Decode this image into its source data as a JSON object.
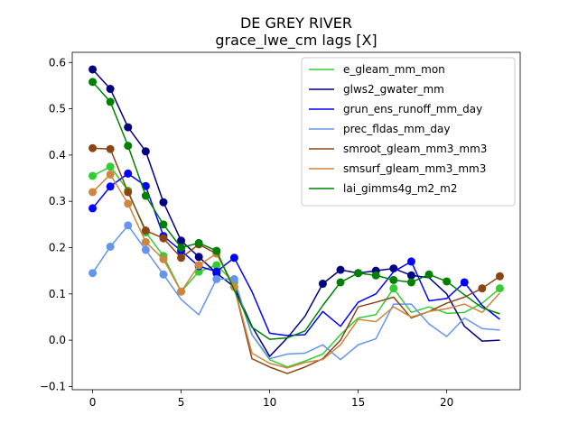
{
  "chart_data": {
    "type": "line",
    "title": "DE GREY RIVER",
    "subtitle": "grace_lwe_cm lags [X]",
    "xlabel": "",
    "ylabel": "",
    "xlim": [
      -1.15,
      24.15
    ],
    "ylim": [
      -0.107,
      0.622
    ],
    "xticks": [
      0,
      5,
      10,
      15,
      20
    ],
    "yticks": [
      -0.1,
      0.0,
      0.1,
      0.2,
      0.3,
      0.4,
      0.5,
      0.6
    ],
    "ytick_labels": [
      "−0.1",
      "0.0",
      "0.1",
      "0.2",
      "0.3",
      "0.4",
      "0.5",
      "0.6"
    ],
    "grid": false,
    "legend_position": "top-right",
    "x": [
      0,
      1,
      2,
      3,
      4,
      5,
      6,
      7,
      8,
      9,
      10,
      11,
      12,
      13,
      14,
      15,
      16,
      17,
      18,
      19,
      20,
      21,
      22,
      23
    ],
    "series": [
      {
        "name": "e_gleam_mm_mon",
        "color": "#32cd32",
        "values": [
          0.355,
          0.375,
          0.323,
          0.233,
          0.182,
          0.105,
          0.148,
          0.162,
          0.125,
          0.012,
          -0.042,
          -0.058,
          -0.045,
          -0.03,
          0.012,
          0.048,
          0.055,
          0.112,
          0.06,
          0.072,
          0.058,
          0.06,
          0.08,
          0.112
        ],
        "markers": [
          0,
          1,
          2,
          3,
          4,
          5,
          6,
          7,
          8,
          17,
          23
        ]
      },
      {
        "name": "glws2_gwater_mm",
        "color": "#000080",
        "values": [
          0.585,
          0.543,
          0.46,
          0.408,
          0.298,
          0.215,
          0.18,
          0.145,
          0.115,
          0.03,
          -0.035,
          0.005,
          0.052,
          0.122,
          0.152,
          0.145,
          0.15,
          0.155,
          0.14,
          0.135,
          0.1,
          0.03,
          -0.002,
          0.0
        ],
        "markers": [
          0,
          1,
          2,
          3,
          4,
          5,
          6,
          7,
          13,
          14,
          15,
          16,
          17,
          18
        ]
      },
      {
        "name": "grun_ens_runoff_mm_day",
        "color": "#0000ff",
        "values": [
          0.285,
          0.332,
          0.36,
          0.333,
          0.225,
          0.193,
          0.16,
          0.148,
          0.178,
          0.105,
          0.015,
          0.01,
          0.012,
          0.062,
          0.03,
          0.082,
          0.1,
          0.148,
          0.17,
          0.085,
          0.09,
          0.125,
          0.075,
          0.045
        ],
        "markers": [
          0,
          1,
          2,
          3,
          4,
          5,
          6,
          7,
          8,
          18,
          21
        ]
      },
      {
        "name": "prec_fldas_mm_day",
        "color": "#6495ed",
        "values": [
          0.145,
          0.202,
          0.248,
          0.195,
          0.142,
          0.088,
          0.055,
          0.132,
          0.132,
          0.012,
          -0.04,
          -0.03,
          -0.028,
          -0.01,
          -0.042,
          -0.01,
          0.003,
          0.078,
          0.078,
          0.035,
          0.008,
          0.048,
          0.025,
          0.022
        ],
        "markers": [
          0,
          1,
          2,
          3,
          4,
          7,
          8
        ]
      },
      {
        "name": "smroot_gleam_mm3_mm3",
        "color": "#8b4513",
        "values": [
          0.415,
          0.413,
          0.32,
          0.237,
          0.22,
          0.178,
          0.207,
          0.187,
          0.115,
          -0.04,
          -0.058,
          -0.072,
          -0.058,
          -0.04,
          0.0,
          0.072,
          0.082,
          0.093,
          0.048,
          0.062,
          0.08,
          0.093,
          0.112,
          0.138
        ],
        "markers": [
          0,
          1,
          2,
          3,
          4,
          5,
          6,
          22,
          23
        ]
      },
      {
        "name": "smsurf_gleam_mm3_mm3",
        "color": "#cd853f",
        "values": [
          0.32,
          0.358,
          0.295,
          0.212,
          0.175,
          0.105,
          0.162,
          0.187,
          0.115,
          -0.028,
          -0.05,
          -0.06,
          -0.048,
          -0.042,
          -0.01,
          0.045,
          0.04,
          0.072,
          0.05,
          0.062,
          0.068,
          0.078,
          0.06,
          0.102
        ],
        "markers": [
          0,
          1,
          2,
          3,
          4,
          5,
          6,
          7,
          8
        ]
      },
      {
        "name": "lai_gimms4g_m2_m2",
        "color": "#008000",
        "values": [
          0.558,
          0.515,
          0.42,
          0.312,
          0.25,
          0.2,
          0.21,
          0.193,
          0.108,
          0.028,
          0.002,
          0.005,
          0.02,
          0.075,
          0.125,
          0.145,
          0.14,
          0.13,
          0.125,
          0.142,
          0.127,
          0.098,
          0.07,
          0.057
        ],
        "markers": [
          0,
          1,
          2,
          3,
          4,
          5,
          6,
          7,
          14,
          15,
          16,
          17,
          18,
          19,
          20
        ]
      }
    ]
  }
}
